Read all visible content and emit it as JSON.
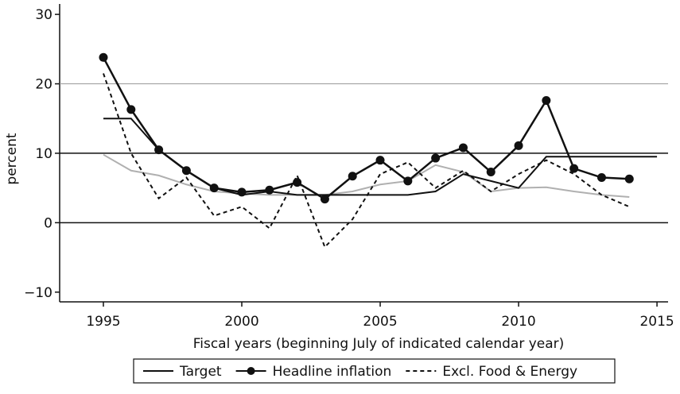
{
  "chart_data": {
    "type": "line",
    "x": [
      1995,
      1996,
      1997,
      1998,
      1999,
      2000,
      2001,
      2002,
      2003,
      2004,
      2005,
      2006,
      2007,
      2008,
      2009,
      2010,
      2011,
      2012,
      2013,
      2014,
      2015
    ],
    "series": [
      {
        "color": "#b0b0b0",
        "width": 2,
        "values": [
          9.8,
          7.5,
          6.8,
          5.5,
          4.5,
          4.2,
          4.0,
          4.0,
          4.0,
          4.5,
          5.5,
          6.0,
          8.3,
          7.3,
          4.5,
          5.0,
          5.1,
          4.5,
          4.0,
          3.7,
          null
        ]
      },
      {
        "name": "Target",
        "color": "#111111",
        "width": 2,
        "values": [
          15,
          15,
          10.5,
          7.5,
          5,
          4,
          4.5,
          4,
          4,
          4,
          4,
          4,
          4.5,
          7,
          6,
          5,
          9.5,
          9.5,
          9.5,
          9.5,
          9.5
        ]
      },
      {
        "name": "Headline inflation",
        "color": "#111111",
        "width": 2.5,
        "marker": true,
        "values": [
          23.8,
          16.3,
          10.5,
          7.5,
          5.0,
          4.4,
          4.7,
          5.8,
          3.4,
          6.7,
          9.0,
          6.0,
          9.3,
          10.8,
          7.3,
          11.1,
          17.6,
          7.8,
          6.5,
          6.3,
          null
        ]
      },
      {
        "name": "Excl. Food & Energy",
        "color": "#111111",
        "width": 2,
        "dash": true,
        "values": [
          21.5,
          10,
          3.5,
          6.5,
          1,
          2.3,
          -0.8,
          6.8,
          -3.5,
          0.5,
          7,
          8.7,
          5,
          7.5,
          4.5,
          7,
          9,
          7,
          4,
          2.3,
          null
        ]
      }
    ],
    "hlines": [
      {
        "value": 20,
        "color": "#999999"
      },
      {
        "value": 10,
        "color": "#111111"
      },
      {
        "value": 0,
        "color": "#111111"
      }
    ],
    "xlim": [
      1993.42,
      2015.4
    ],
    "ylim": [
      -11.4,
      31.5
    ],
    "xticks": [
      1995,
      2000,
      2005,
      2010,
      2015
    ],
    "yticks": [
      {
        "value": -10,
        "label": "−10"
      },
      0,
      10,
      20,
      30
    ],
    "xlabel": "Fiscal years (beginning July of indicated calendar year)",
    "ylabel": "percent",
    "legend": "bottom"
  }
}
